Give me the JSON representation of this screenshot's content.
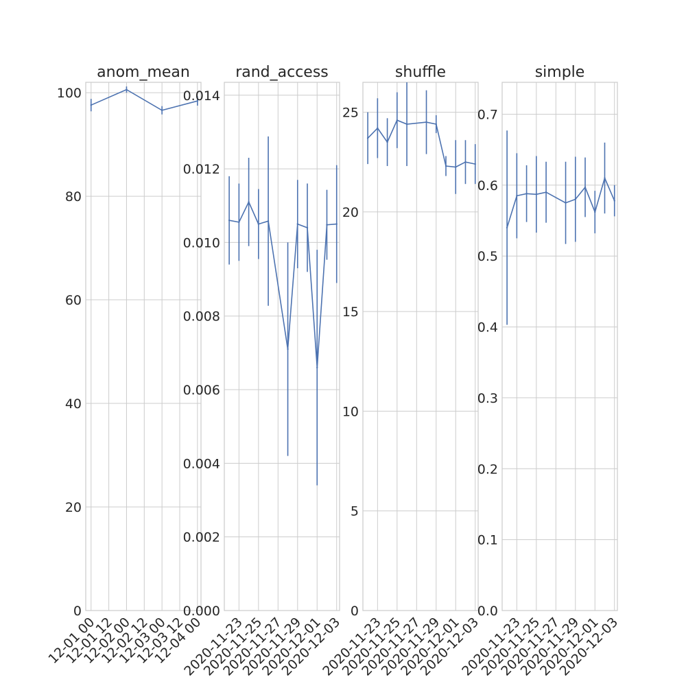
{
  "chart_data": [
    {
      "type": "line",
      "title": "anom_mean",
      "grid": true,
      "x_tick_labels": [
        "12-01 00",
        "12-01 12",
        "12-02 00",
        "12-02 12",
        "12-03 00",
        "12-03 12",
        "12-04 00"
      ],
      "x": [
        "12-01 00",
        "12-02 00",
        "12-03 00",
        "12-04 00"
      ],
      "y": [
        97.6,
        100.6,
        96.6,
        98.4
      ],
      "y_err": [
        1.2,
        0.6,
        0.8,
        0.9
      ],
      "ylim": [
        0,
        102
      ],
      "y_ticks": [
        0,
        20,
        40,
        60,
        80,
        100
      ],
      "y_tick_labels": [
        "0",
        "20",
        "40",
        "60",
        "80",
        "100"
      ]
    },
    {
      "type": "line",
      "title": "rand_access",
      "grid": true,
      "x_tick_labels": [
        "2020-11-23",
        "2020-11-25",
        "2020-11-27",
        "2020-11-29",
        "2020-12-01",
        "2020-12-03"
      ],
      "x": [
        "2020-11-22",
        "2020-11-23",
        "2020-11-24",
        "2020-11-25",
        "2020-11-26",
        "2020-11-28",
        "2020-11-29",
        "2020-11-30",
        "2020-12-01",
        "2020-12-02",
        "2020-12-03"
      ],
      "y": [
        0.0106,
        0.01055,
        0.0111,
        0.0105,
        0.01058,
        0.0071,
        0.0105,
        0.0104,
        0.0066,
        0.01048,
        0.0105
      ],
      "y_err": [
        0.0012,
        0.00105,
        0.0012,
        0.00095,
        0.0023,
        0.0029,
        0.0012,
        0.0012,
        0.0032,
        0.00095,
        0.0016
      ],
      "ylim": [
        0,
        0.01435
      ],
      "y_ticks": [
        0,
        0.002,
        0.004,
        0.006,
        0.008,
        0.01,
        0.012,
        0.014
      ],
      "y_tick_labels": [
        "0.000",
        "0.002",
        "0.004",
        "0.006",
        "0.008",
        "0.010",
        "0.012",
        "0.014"
      ]
    },
    {
      "type": "line",
      "title": "shuffle",
      "grid": true,
      "x_tick_labels": [
        "2020-11-23",
        "2020-11-25",
        "2020-11-27",
        "2020-11-29",
        "2020-12-01",
        "2020-12-03"
      ],
      "x": [
        "2020-11-22",
        "2020-11-23",
        "2020-11-24",
        "2020-11-25",
        "2020-11-26",
        "2020-11-28",
        "2020-11-29",
        "2020-11-30",
        "2020-12-01",
        "2020-12-02",
        "2020-12-03"
      ],
      "y": [
        23.7,
        24.2,
        23.5,
        24.6,
        24.4,
        24.5,
        24.4,
        22.3,
        22.25,
        22.5,
        22.4
      ],
      "y_err": [
        1.3,
        1.5,
        1.2,
        1.4,
        2.1,
        1.6,
        0.45,
        0.5,
        1.35,
        1.1,
        1.0
      ],
      "ylim": [
        0,
        26.5
      ],
      "y_ticks": [
        0,
        5,
        10,
        15,
        20,
        25
      ],
      "y_tick_labels": [
        "0",
        "5",
        "10",
        "15",
        "20",
        "25"
      ]
    },
    {
      "type": "line",
      "title": "simple",
      "grid": true,
      "x_tick_labels": [
        "2020-11-23",
        "2020-11-25",
        "2020-11-27",
        "2020-11-29",
        "2020-12-01",
        "2020-12-03"
      ],
      "x": [
        "2020-11-22",
        "2020-11-23",
        "2020-11-24",
        "2020-11-25",
        "2020-11-26",
        "2020-11-28",
        "2020-11-29",
        "2020-11-30",
        "2020-12-01",
        "2020-12-02",
        "2020-12-03"
      ],
      "y": [
        0.54,
        0.585,
        0.588,
        0.587,
        0.59,
        0.575,
        0.58,
        0.597,
        0.562,
        0.61,
        0.578
      ],
      "y_err": [
        0.137,
        0.06,
        0.04,
        0.054,
        0.043,
        0.058,
        0.06,
        0.042,
        0.03,
        0.05,
        0.022
      ],
      "ylim": [
        0,
        0.745
      ],
      "y_ticks": [
        0,
        0.1,
        0.2,
        0.3,
        0.4,
        0.5,
        0.6,
        0.7
      ],
      "y_tick_labels": [
        "0.0",
        "0.1",
        "0.2",
        "0.3",
        "0.4",
        "0.5",
        "0.6",
        "0.7"
      ]
    }
  ]
}
